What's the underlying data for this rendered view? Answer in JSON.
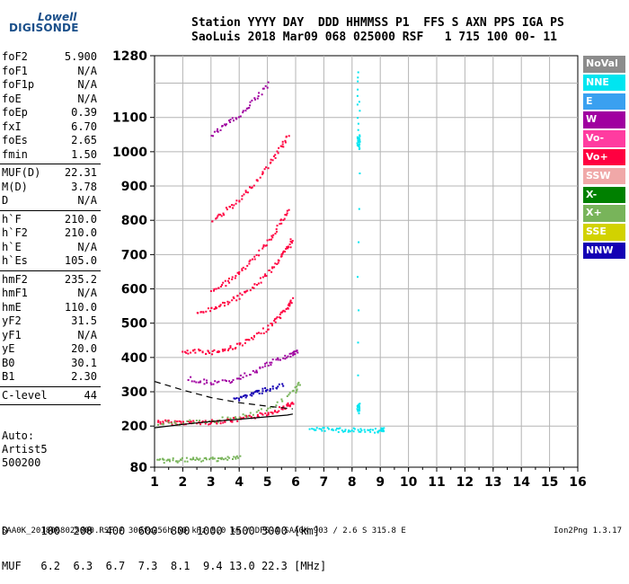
{
  "logo": {
    "line1": "Lowell",
    "line2": "DIGISONDE"
  },
  "header": {
    "line1": "Station YYYY DAY  DDD HHMMSS P1  FFS S AXN PPS IGA PS",
    "line2": "SaoLuis 2018 Mar09 068 025000 RSF   1 715 100 00- 11"
  },
  "params": {
    "group1": [
      {
        "name": "foF2",
        "value": "5.900"
      },
      {
        "name": "foF1",
        "value": "N/A"
      },
      {
        "name": "foF1p",
        "value": "N/A"
      },
      {
        "name": "foE",
        "value": "N/A"
      },
      {
        "name": "foEp",
        "value": "0.39"
      },
      {
        "name": "fxI",
        "value": "6.70"
      },
      {
        "name": "foEs",
        "value": "2.65"
      },
      {
        "name": "fmin",
        "value": "1.50"
      }
    ],
    "group2": [
      {
        "name": "MUF(D)",
        "value": "22.31"
      },
      {
        "name": "M(D)",
        "value": "3.78"
      },
      {
        "name": "D",
        "value": "N/A"
      }
    ],
    "group3": [
      {
        "name": "h`F",
        "value": "210.0"
      },
      {
        "name": "h`F2",
        "value": "210.0"
      },
      {
        "name": "h`E",
        "value": "N/A"
      },
      {
        "name": "h`Es",
        "value": "105.0"
      }
    ],
    "group4": [
      {
        "name": "hmF2",
        "value": "235.2"
      },
      {
        "name": "hmF1",
        "value": "N/A"
      },
      {
        "name": "hmE",
        "value": "110.0"
      },
      {
        "name": "yF2",
        "value": "31.5"
      },
      {
        "name": "yF1",
        "value": "N/A"
      },
      {
        "name": "yE",
        "value": "20.0"
      },
      {
        "name": "B0",
        "value": "30.1"
      },
      {
        "name": "B1",
        "value": "2.30"
      }
    ],
    "group5": [
      {
        "name": "C-level",
        "value": "44"
      }
    ]
  },
  "auto": {
    "line1": "Auto:",
    "line2": "Artist5",
    "line3": "500200"
  },
  "legend": [
    {
      "label": "NoVal",
      "color": "#8c8c8c"
    },
    {
      "label": "NNE",
      "color": "#00e5f0"
    },
    {
      "label": "E",
      "color": "#3aa0f0"
    },
    {
      "label": "W",
      "color": "#a000a0"
    },
    {
      "label": "Vo-",
      "color": "#ff3ca0"
    },
    {
      "label": "Vo+",
      "color": "#ff0040"
    },
    {
      "label": "SSW",
      "color": "#f0a8a8"
    },
    {
      "label": "X-",
      "color": "#008000"
    },
    {
      "label": "X+",
      "color": "#78b45a"
    },
    {
      "label": "SSE",
      "color": "#d2d200"
    },
    {
      "label": "NNW",
      "color": "#1400b4"
    }
  ],
  "muf_table": {
    "line1": "D     100  200  400  600  800 1000 1500 3000 [km]",
    "line2": "MUF   6.2  6.3  6.7  7.3  8.1  9.4 13.0 22.3 [MHz]"
  },
  "footer": {
    "left": "SAA0K_2018068025000.RSF / 300fx256h 50 kHz 5.0 km / DPS-4 SAA0K 903 / 2.6 S 315.8 E",
    "right": "Ion2Png 1.3.17"
  },
  "chart_data": {
    "type": "scatter",
    "title": "",
    "xlabel": "",
    "ylabel": "",
    "xlim": [
      1,
      16
    ],
    "ylim": [
      80,
      1280
    ],
    "x_ticks": [
      1,
      2,
      3,
      4,
      5,
      6,
      7,
      8,
      9,
      10,
      11,
      12,
      13,
      14,
      15,
      16
    ],
    "y_ticks": [
      80,
      200,
      300,
      400,
      500,
      600,
      700,
      800,
      900,
      1000,
      1100,
      1280
    ],
    "grid": true,
    "legend_position": "right",
    "traces": [
      {
        "color": "#ff0040",
        "points": [
          [
            1.1,
            215
          ],
          [
            1.5,
            213
          ],
          [
            2.0,
            213
          ],
          [
            2.5,
            212
          ],
          [
            3.0,
            214
          ],
          [
            3.5,
            218
          ],
          [
            4.0,
            222
          ],
          [
            4.5,
            230
          ],
          [
            5.0,
            240
          ],
          [
            5.4,
            252
          ],
          [
            5.7,
            262
          ],
          [
            5.85,
            268
          ]
        ]
      },
      {
        "color": "#ff0040",
        "points": [
          [
            2.0,
            415
          ],
          [
            2.5,
            420
          ],
          [
            3.0,
            418
          ],
          [
            3.5,
            425
          ],
          [
            4.0,
            440
          ],
          [
            4.5,
            460
          ],
          [
            5.0,
            490
          ],
          [
            5.4,
            520
          ],
          [
            5.7,
            550
          ],
          [
            5.85,
            570
          ]
        ]
      },
      {
        "color": "#ff0040",
        "points": [
          [
            2.5,
            530
          ],
          [
            3.0,
            545
          ],
          [
            3.5,
            560
          ],
          [
            4.0,
            580
          ],
          [
            4.5,
            610
          ],
          [
            5.0,
            650
          ],
          [
            5.4,
            690
          ],
          [
            5.7,
            720
          ],
          [
            5.85,
            745
          ]
        ]
      },
      {
        "color": "#ff0040",
        "points": [
          [
            3.0,
            600
          ],
          [
            3.5,
            620
          ],
          [
            4.0,
            650
          ],
          [
            4.5,
            690
          ],
          [
            5.0,
            740
          ],
          [
            5.4,
            790
          ],
          [
            5.7,
            830
          ]
        ]
      },
      {
        "color": "#ff0040",
        "points": [
          [
            3.0,
            800
          ],
          [
            3.5,
            830
          ],
          [
            4.0,
            860
          ],
          [
            4.5,
            910
          ],
          [
            5.0,
            960
          ],
          [
            5.4,
            1010
          ],
          [
            5.7,
            1050
          ]
        ]
      },
      {
        "color": "#a000a0",
        "points": [
          [
            2.2,
            340
          ],
          [
            2.8,
            330
          ],
          [
            3.5,
            330
          ],
          [
            4.2,
            350
          ],
          [
            4.8,
            375
          ],
          [
            5.3,
            395
          ],
          [
            5.8,
            410
          ],
          [
            6.0,
            420
          ]
        ]
      },
      {
        "color": "#a000a0",
        "points": [
          [
            3.0,
            1050
          ],
          [
            3.5,
            1080
          ],
          [
            4.0,
            1110
          ],
          [
            4.5,
            1150
          ],
          [
            5.0,
            1200
          ]
        ]
      },
      {
        "color": "#78b45a",
        "points": [
          [
            1.1,
            210
          ],
          [
            2.0,
            212
          ],
          [
            3.0,
            218
          ],
          [
            4.0,
            230
          ],
          [
            5.0,
            250
          ],
          [
            5.9,
            300
          ],
          [
            6.1,
            330
          ]
        ]
      },
      {
        "color": "#78b45a",
        "points": [
          [
            1.1,
            100
          ],
          [
            1.5,
            102
          ],
          [
            2.0,
            103
          ],
          [
            2.5,
            104
          ],
          [
            3.0,
            106
          ],
          [
            3.5,
            108
          ],
          [
            4.0,
            110
          ]
        ]
      },
      {
        "color": "#1400b4",
        "points": [
          [
            3.8,
            280
          ],
          [
            4.2,
            290
          ],
          [
            4.6,
            300
          ],
          [
            5.0,
            310
          ],
          [
            5.5,
            320
          ]
        ]
      },
      {
        "color": "#00e5f0",
        "points": [
          [
            6.5,
            190
          ],
          [
            7.0,
            192
          ],
          [
            7.5,
            191
          ],
          [
            8.0,
            190
          ],
          [
            8.5,
            189
          ],
          [
            9.0,
            190
          ],
          [
            9.1,
            191
          ]
        ]
      },
      {
        "color": "#00e5f0",
        "points": [
          [
            8.2,
            1010
          ],
          [
            8.2,
            1030
          ],
          [
            8.2,
            1050
          ],
          [
            8.2,
            1240
          ],
          [
            8.2,
            245
          ],
          [
            8.2,
            255
          ],
          [
            8.2,
            265
          ]
        ]
      }
    ],
    "profile_solid": [
      [
        1.0,
        195
      ],
      [
        2.0,
        205
      ],
      [
        3.0,
        213
      ],
      [
        4.0,
        220
      ],
      [
        5.0,
        227
      ],
      [
        5.7,
        232
      ],
      [
        5.9,
        235
      ]
    ],
    "profile_dashed": [
      [
        1.0,
        330
      ],
      [
        2.0,
        305
      ],
      [
        3.0,
        283
      ],
      [
        4.0,
        268
      ],
      [
        5.0,
        258
      ],
      [
        5.9,
        250
      ]
    ]
  }
}
